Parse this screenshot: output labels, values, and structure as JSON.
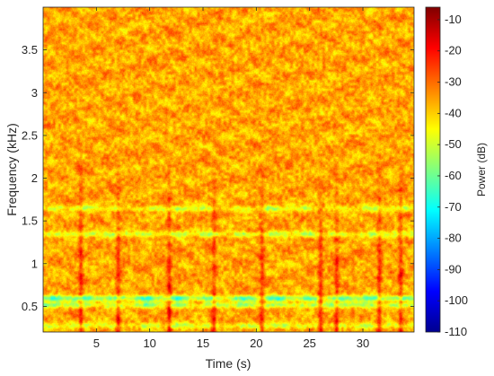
{
  "chart_data": {
    "type": "heatmap",
    "title": "",
    "xlabel": "Time (s)",
    "ylabel": "Frequency (kHz)",
    "colorbar_label": "Power (dB)",
    "colormap": "jet",
    "xlim": [
      0,
      34.8
    ],
    "ylim": [
      0.2,
      4.0
    ],
    "clim": [
      -110,
      -6
    ],
    "x_ticks": [
      5,
      10,
      15,
      20,
      25,
      30
    ],
    "x_tick_labels": [
      "5",
      "10",
      "15",
      "20",
      "25",
      "30"
    ],
    "y_ticks": [
      0.5,
      1,
      1.5,
      2,
      2.5,
      3,
      3.5
    ],
    "y_tick_labels": [
      "0.5",
      "1",
      "1.5",
      "2",
      "2.5",
      "3",
      "3.5"
    ],
    "colorbar_ticks": [
      -10,
      -20,
      -30,
      -40,
      -50,
      -60,
      -70,
      -80,
      -90,
      -100,
      -110
    ],
    "colorbar_tick_labels": [
      "-10",
      "-20",
      "-30",
      "-40",
      "-50",
      "-60",
      "-70",
      "-80",
      "-90",
      "-100",
      "-110"
    ],
    "features": {
      "background_power_db": -36,
      "low_power_bands": [
        {
          "frequency_khz": 0.6,
          "power_db": -65
        },
        {
          "frequency_khz": 0.52,
          "power_db": -56
        },
        {
          "frequency_khz": 1.35,
          "power_db": -52
        },
        {
          "frequency_khz": 1.65,
          "power_db": -50
        },
        {
          "frequency_khz": 0.28,
          "power_db": -50
        }
      ],
      "high_power_events_s": [
        3.5,
        7,
        11.8,
        16,
        20.5,
        26,
        27.5,
        31.5,
        33.5
      ]
    }
  }
}
